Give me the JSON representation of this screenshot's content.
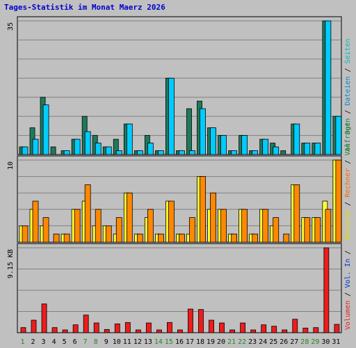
{
  "title": "Tages-Statistik im Monat Maerz 2026",
  "colors": {
    "frame": "#c0c0c0",
    "grid": "#808080",
    "title": "#0000cc",
    "anfragen": "#1f7a5c",
    "dateien": "#00ccff",
    "seiten": "#00cccc",
    "besuche": "#ffff33",
    "rechner": "#ff8800",
    "kb": "#ee1c1c",
    "weekend_label": "#228822",
    "weekday_label": "#000000"
  },
  "right_labels": {
    "top": [
      {
        "text": "Anfragen",
        "color": "#1f7a5c"
      },
      {
        "text": " / ",
        "color": "#000000"
      },
      {
        "text": "Dateien",
        "color": "#0088cc"
      },
      {
        "text": " / ",
        "color": "#000000"
      },
      {
        "text": "Seiten",
        "color": "#00bbbb"
      }
    ],
    "middle": [
      {
        "text": "Besuche",
        "color": "#dddd00"
      },
      {
        "text": " / ",
        "color": "#000000"
      },
      {
        "text": "Rechner",
        "color": "#ff6600"
      },
      {
        "text": " / ",
        "color": "#000000"
      },
      {
        "text": "Vol. Out",
        "color": "#228822"
      }
    ],
    "bottom": [
      {
        "text": "Volumen",
        "color": "#ee1c1c"
      },
      {
        "text": " / ",
        "color": "#000000"
      },
      {
        "text": "Vol. In",
        "color": "#0033cc"
      },
      {
        "text": " / ",
        "color": "#000000"
      }
    ]
  },
  "chart_data": [
    {
      "type": "bar",
      "panel": "top",
      "ymax_label": "35",
      "ylim": [
        0,
        35
      ],
      "categories": [
        "1",
        "2",
        "3",
        "4",
        "5",
        "6",
        "7",
        "8",
        "9",
        "10",
        "11",
        "12",
        "13",
        "14",
        "15",
        "16",
        "17",
        "18",
        "19",
        "20",
        "21",
        "22",
        "23",
        "24",
        "25",
        "26",
        "27",
        "28",
        "29",
        "30",
        "31"
      ],
      "weekend": [
        "1",
        "7",
        "8",
        "14",
        "15",
        "21",
        "22",
        "28",
        "29"
      ],
      "series": [
        {
          "name": "Anfragen",
          "values": [
            2,
            7,
            15,
            2,
            1,
            4,
            10,
            5,
            2,
            4,
            8,
            1,
            5,
            1,
            20,
            1,
            12,
            14,
            7,
            5,
            1,
            5,
            1,
            4,
            3,
            1,
            8,
            3,
            3,
            35,
            10
          ]
        },
        {
          "name": "Dateien",
          "values": [
            2,
            4,
            13,
            0,
            1,
            4,
            6,
            3,
            2,
            1,
            8,
            1,
            3,
            1,
            20,
            1,
            1,
            12,
            7,
            5,
            1,
            5,
            1,
            4,
            2,
            0,
            8,
            3,
            3,
            35,
            10
          ]
        }
      ]
    },
    {
      "type": "bar",
      "panel": "middle",
      "ymax_label": "10",
      "ylim": [
        0,
        10
      ],
      "categories": [
        "1",
        "2",
        "3",
        "4",
        "5",
        "6",
        "7",
        "8",
        "9",
        "10",
        "11",
        "12",
        "13",
        "14",
        "15",
        "16",
        "17",
        "18",
        "19",
        "20",
        "21",
        "22",
        "23",
        "24",
        "25",
        "26",
        "27",
        "28",
        "29",
        "30",
        "31"
      ],
      "series": [
        {
          "name": "Besuche",
          "values": [
            2,
            4,
            2,
            0,
            1,
            4,
            5,
            2,
            2,
            1,
            6,
            1,
            3,
            1,
            5,
            1,
            1,
            8,
            4,
            4,
            1,
            4,
            1,
            4,
            2,
            0,
            7,
            3,
            3,
            5,
            10
          ]
        },
        {
          "name": "Rechner",
          "values": [
            2,
            5,
            3,
            1,
            1,
            4,
            7,
            4,
            2,
            3,
            6,
            1,
            4,
            1,
            5,
            1,
            3,
            8,
            6,
            4,
            1,
            4,
            1,
            4,
            3,
            1,
            7,
            3,
            3,
            4,
            10
          ]
        }
      ]
    },
    {
      "type": "bar",
      "panel": "bottom",
      "ymax_label": "9.15 KB",
      "ylim": [
        0,
        9.15
      ],
      "categories": [
        "1",
        "2",
        "3",
        "4",
        "5",
        "6",
        "7",
        "8",
        "9",
        "10",
        "11",
        "12",
        "13",
        "14",
        "15",
        "16",
        "17",
        "18",
        "19",
        "20",
        "21",
        "22",
        "23",
        "24",
        "25",
        "26",
        "27",
        "28",
        "29",
        "30",
        "31"
      ],
      "series": [
        {
          "name": "Volumen",
          "values": [
            0.55,
            1.35,
            3.1,
            0.55,
            0.3,
            0.85,
            1.9,
            1.05,
            0.35,
            0.95,
            1.1,
            0.3,
            1.05,
            0.3,
            1.1,
            0.3,
            2.55,
            2.5,
            1.35,
            1.05,
            0.3,
            1.05,
            0.3,
            0.85,
            0.7,
            0.3,
            1.45,
            0.5,
            0.55,
            9.15,
            0.9
          ]
        }
      ]
    }
  ]
}
